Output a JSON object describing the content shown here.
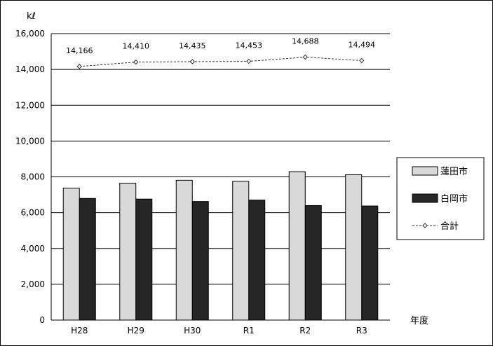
{
  "chart_data": {
    "type": "bar",
    "y_unit_label": "kℓ",
    "x_unit_label": "年度",
    "categories": [
      "H28",
      "H29",
      "H30",
      "R1",
      "R2",
      "R3"
    ],
    "ylim": [
      0,
      16000
    ],
    "yticks": [
      0,
      2000,
      4000,
      6000,
      8000,
      10000,
      12000,
      14000,
      16000
    ],
    "ytick_labels": [
      "0",
      "2,000",
      "4,000",
      "6,000",
      "8,000",
      "10,000",
      "12,000",
      "14,000",
      "16,000"
    ],
    "grid": true,
    "legend_position": "right",
    "series": [
      {
        "name": "蓮田市",
        "kind": "bar",
        "color": "#d9d9d9",
        "values": [
          7370,
          7650,
          7810,
          7750,
          8290,
          8120
        ]
      },
      {
        "name": "白岡市",
        "kind": "bar",
        "color": "#262626",
        "values": [
          6796,
          6760,
          6625,
          6703,
          6398,
          6374
        ]
      },
      {
        "name": "合計",
        "kind": "line",
        "color": "#555555",
        "values": [
          14166,
          14410,
          14435,
          14453,
          14688,
          14494
        ],
        "labels": [
          "14,166",
          "14,410",
          "14,435",
          "14,453",
          "14,688",
          "14,494"
        ]
      }
    ]
  }
}
